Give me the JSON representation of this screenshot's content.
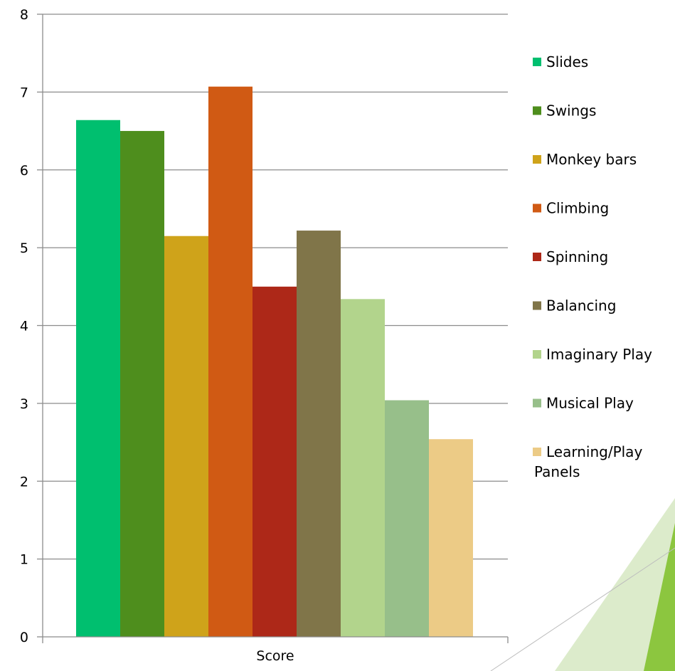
{
  "chart_data": {
    "type": "bar",
    "categories": [
      "Score"
    ],
    "series": [
      {
        "name": "Slides",
        "values": [
          6.64
        ],
        "color": "#00BF6F"
      },
      {
        "name": "Swings",
        "values": [
          6.5
        ],
        "color": "#4E8E1D"
      },
      {
        "name": "Monkey bars",
        "values": [
          5.15
        ],
        "color": "#CFA31A"
      },
      {
        "name": "Climbing",
        "values": [
          7.07
        ],
        "color": "#D05A14"
      },
      {
        "name": "Spinning",
        "values": [
          4.5
        ],
        "color": "#AD2818"
      },
      {
        "name": "Balancing",
        "values": [
          5.22
        ],
        "color": "#807549"
      },
      {
        "name": "Imaginary Play",
        "values": [
          4.34
        ],
        "color": "#B2D48C"
      },
      {
        "name": "Musical Play",
        "values": [
          3.04
        ],
        "color": "#97BF8A"
      },
      {
        "name": "Learning/Play Panels",
        "values": [
          2.54
        ],
        "color": "#ECCB86"
      }
    ],
    "xlabel": "Score",
    "ylabel": "",
    "ylim": [
      0,
      8
    ],
    "yticks": [
      "0",
      "1",
      "2",
      "3",
      "4",
      "5",
      "6",
      "7",
      "8"
    ],
    "grid": true,
    "legend_position": "right",
    "colors": {
      "grid": "#8C8C8C",
      "axis": "#8C8C8C",
      "decor_green": "#8CC63F",
      "decor_light": "#DCEBCB"
    }
  }
}
